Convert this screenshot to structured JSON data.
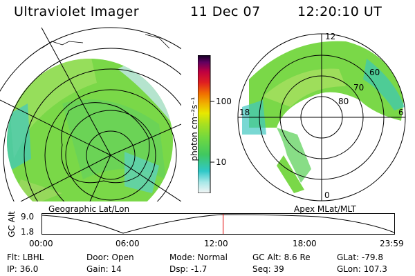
{
  "header": {
    "title": "Ultraviolet Imager",
    "date": "11 Dec 07",
    "time": "12:20:10 UT"
  },
  "left_panel": {
    "label": "Geographic Lat/Lon"
  },
  "right_panel": {
    "label": "Apex MLat/MLT",
    "mlt_labels": {
      "top": "12",
      "left": "18",
      "right": "6",
      "bottom": "0"
    },
    "lat_labels": [
      "60",
      "70",
      "80"
    ]
  },
  "colorbar": {
    "unit": "photon cm⁻²s⁻¹",
    "ticks": [
      "100",
      "10"
    ],
    "colors": [
      "#f0f0f0",
      "#7fe0e0",
      "#30c8c8",
      "#50d070",
      "#78d840",
      "#a8e020",
      "#e8e800",
      "#f0b000",
      "#f07000",
      "#e02020",
      "#c00040",
      "#600060",
      "#100020"
    ]
  },
  "timeline": {
    "axis_label": "GC Alt",
    "y_ticks": [
      "9.0",
      "1.8"
    ],
    "x_ticks": [
      "00:00",
      "06:00",
      "12:00",
      "18:00",
      "23:59"
    ],
    "current_fraction": 0.514,
    "marker_color": "#e00000"
  },
  "status": {
    "filter": "Flt: LBHL",
    "ip": "IP: 36.0",
    "door": "Door: Open",
    "gain": "Gain: 14",
    "mode": "Mode: Normal",
    "dsp": "Dsp:   -1.7",
    "gc_alt": "GC Alt: 8.6 Re",
    "seq": "Seq: 39",
    "glat": "GLat: -79.8",
    "glon": "GLon: 107.3"
  }
}
